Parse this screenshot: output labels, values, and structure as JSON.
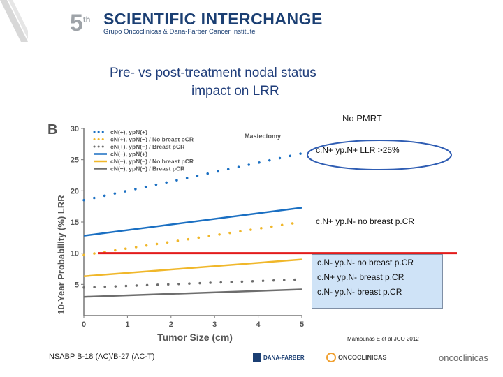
{
  "header": {
    "edition": "5",
    "edition_suffix": "th",
    "title": "SCIENTIFIC INTERCHANGE",
    "subtitle": "Grupo Oncoclinicas & Dana-Farber Cancer Institute"
  },
  "slide": {
    "title_line1": "Pre- vs post-treatment nodal status",
    "title_line2": "impact on LRR",
    "no_pmrt": "No PMRT",
    "oval_text": "c.N+ yp.N+  LLR >25%",
    "label2": "c.N+ yp.N-   no breast p.CR",
    "box_lines": [
      "c.N- yp.N- no breast p.CR",
      "c.N+ yp.N-  breast p.CR",
      "c.N- yp.N-  breast p.CR"
    ],
    "citation": "Mamounas E et al JCO 2012",
    "footer_left": "NSABP B-18 (AC)/B-27 (AC-T)"
  },
  "footer_logos": {
    "dana_farber": "DANA-FARBER",
    "oncoclinicas": "ONCOCLINICAS",
    "grupo": "oncoclinicas"
  },
  "colors": {
    "blue": "#1a6fc2",
    "yellow": "#f0b72a",
    "gray": "#6d6d6d",
    "threshold": "#e31b1b",
    "title": "#1f3d7a"
  },
  "chart_data": {
    "type": "line",
    "panel": "B",
    "inset_title": "Mastectomy",
    "xlabel": "Tumor Size (cm)",
    "ylabel": "10-Year Probability (%) LRR",
    "xlim": [
      0,
      5
    ],
    "ylim": [
      0,
      30
    ],
    "xticks": [
      0,
      1,
      2,
      3,
      4,
      5
    ],
    "yticks": [
      5,
      10,
      15,
      20,
      25,
      30
    ],
    "threshold": 10,
    "series": [
      {
        "name": "cN(+), ypN(+)",
        "style": "dotted",
        "color": "#1a6fc2",
        "x": [
          0,
          5
        ],
        "y": [
          18.5,
          26.0
        ]
      },
      {
        "name": "cN(+), ypN(−) / No breast pCR",
        "style": "dotted",
        "color": "#f0b72a",
        "x": [
          0,
          5
        ],
        "y": [
          9.7,
          15.0
        ]
      },
      {
        "name": "cN(+), ypN(−) / Breast pCR",
        "style": "dotted",
        "color": "#6d6d6d",
        "x": [
          0,
          5
        ],
        "y": [
          4.5,
          5.8
        ]
      },
      {
        "name": "cN(−), ypN(+)",
        "style": "solid",
        "color": "#1a6fc2",
        "x": [
          0,
          5
        ],
        "y": [
          12.8,
          17.3
        ]
      },
      {
        "name": "cN(−), ypN(−) / No breast pCR",
        "style": "solid",
        "color": "#f0b72a",
        "x": [
          0,
          5
        ],
        "y": [
          6.3,
          9.0
        ]
      },
      {
        "name": "cN(−), ypN(−) / Breast pCR",
        "style": "solid",
        "color": "#6d6d6d",
        "x": [
          0,
          5
        ],
        "y": [
          3.0,
          4.2
        ]
      }
    ]
  }
}
